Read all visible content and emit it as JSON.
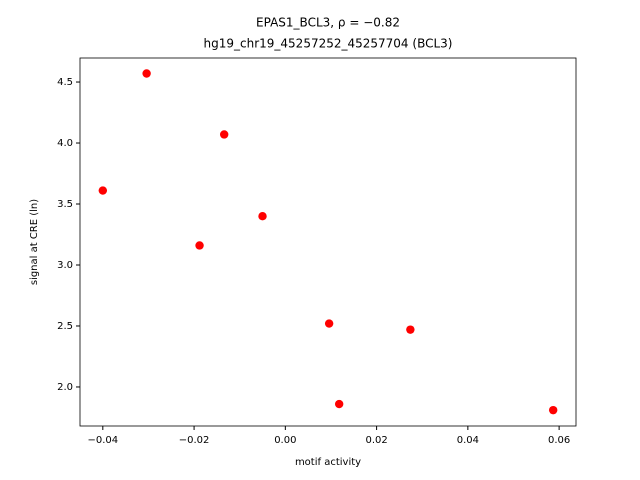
{
  "chart_data": {
    "type": "scatter",
    "title": "EPAS1_BCL3, ρ = −0.82",
    "subtitle": "hg19_chr19_45257252_45257704 (BCL3)",
    "x_label": "motif activity",
    "y_label": "signal at CRE (ln)",
    "series": [
      {
        "color": "#ff0000",
        "x": [
          -0.04,
          -0.0304,
          -0.0134,
          -0.0188,
          -0.005,
          0.0096,
          0.0274,
          0.0118,
          0.0587
        ],
        "values": [
          3.61,
          4.57,
          4.07,
          3.16,
          3.4,
          2.52,
          2.47,
          1.86,
          1.81
        ]
      }
    ],
    "xlim": [
      -0.045,
      0.0637
    ],
    "ylim": [
      1.68,
      4.697
    ],
    "xticks": [
      {
        "value": -0.04,
        "label": "−0.04"
      },
      {
        "value": -0.02,
        "label": "−0.02"
      },
      {
        "value": 0,
        "label": "0.00"
      },
      0.02,
      0.04,
      0.06
    ],
    "yticks": [
      {
        "value": 2,
        "label": "2.0"
      },
      2.5,
      {
        "value": 3,
        "label": "3.0"
      },
      3.5,
      {
        "value": 4,
        "label": "4.0"
      },
      4.5
    ]
  }
}
